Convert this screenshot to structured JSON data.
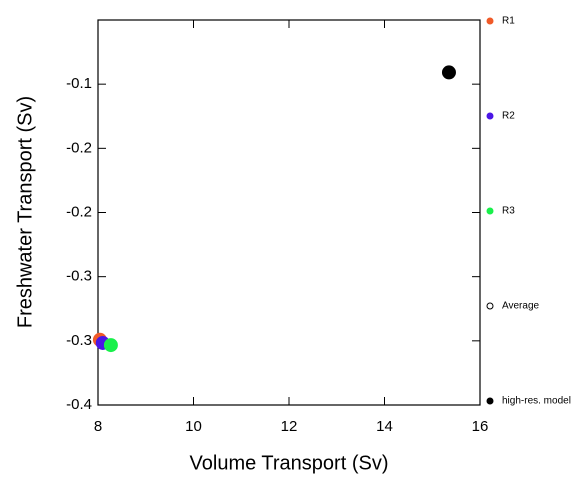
{
  "chart_data": {
    "type": "scatter",
    "x_label": "Volume Transport (Sv)",
    "y_label": "Freshwater Transport (Sv)",
    "xlim": [
      8,
      16
    ],
    "xticks": [
      8,
      10,
      12,
      14,
      16
    ],
    "ylim": [
      -0.4,
      -0.04
    ],
    "yticks": [
      {
        "value": -0.1,
        "label": "-0.1"
      },
      {
        "value": -0.16,
        "label": "-0.2"
      },
      {
        "value": -0.22,
        "label": "-0.2"
      },
      {
        "value": -0.28,
        "label": "-0.3"
      },
      {
        "value": -0.34,
        "label": "-0.3"
      },
      {
        "value": -0.4,
        "label": "-0.4"
      }
    ],
    "legend": "right",
    "series": [
      {
        "name": "R1",
        "color": "#f05a28",
        "filled": true,
        "x": [
          8.04
        ],
        "values": [
          -0.339
        ]
      },
      {
        "name": "R2",
        "color": "#4b16e6",
        "filled": true,
        "x": [
          8.1
        ],
        "values": [
          -0.342
        ]
      },
      {
        "name": "R3",
        "color": "#19f04b",
        "filled": true,
        "x": [
          8.27
        ],
        "values": [
          -0.344
        ]
      },
      {
        "name": "Average",
        "color": "#000000",
        "filled": false,
        "x": [],
        "values": []
      },
      {
        "name": "high-res. model",
        "color": "#000000",
        "filled": true,
        "x": [
          15.35
        ],
        "values": [
          -0.089
        ]
      }
    ]
  }
}
